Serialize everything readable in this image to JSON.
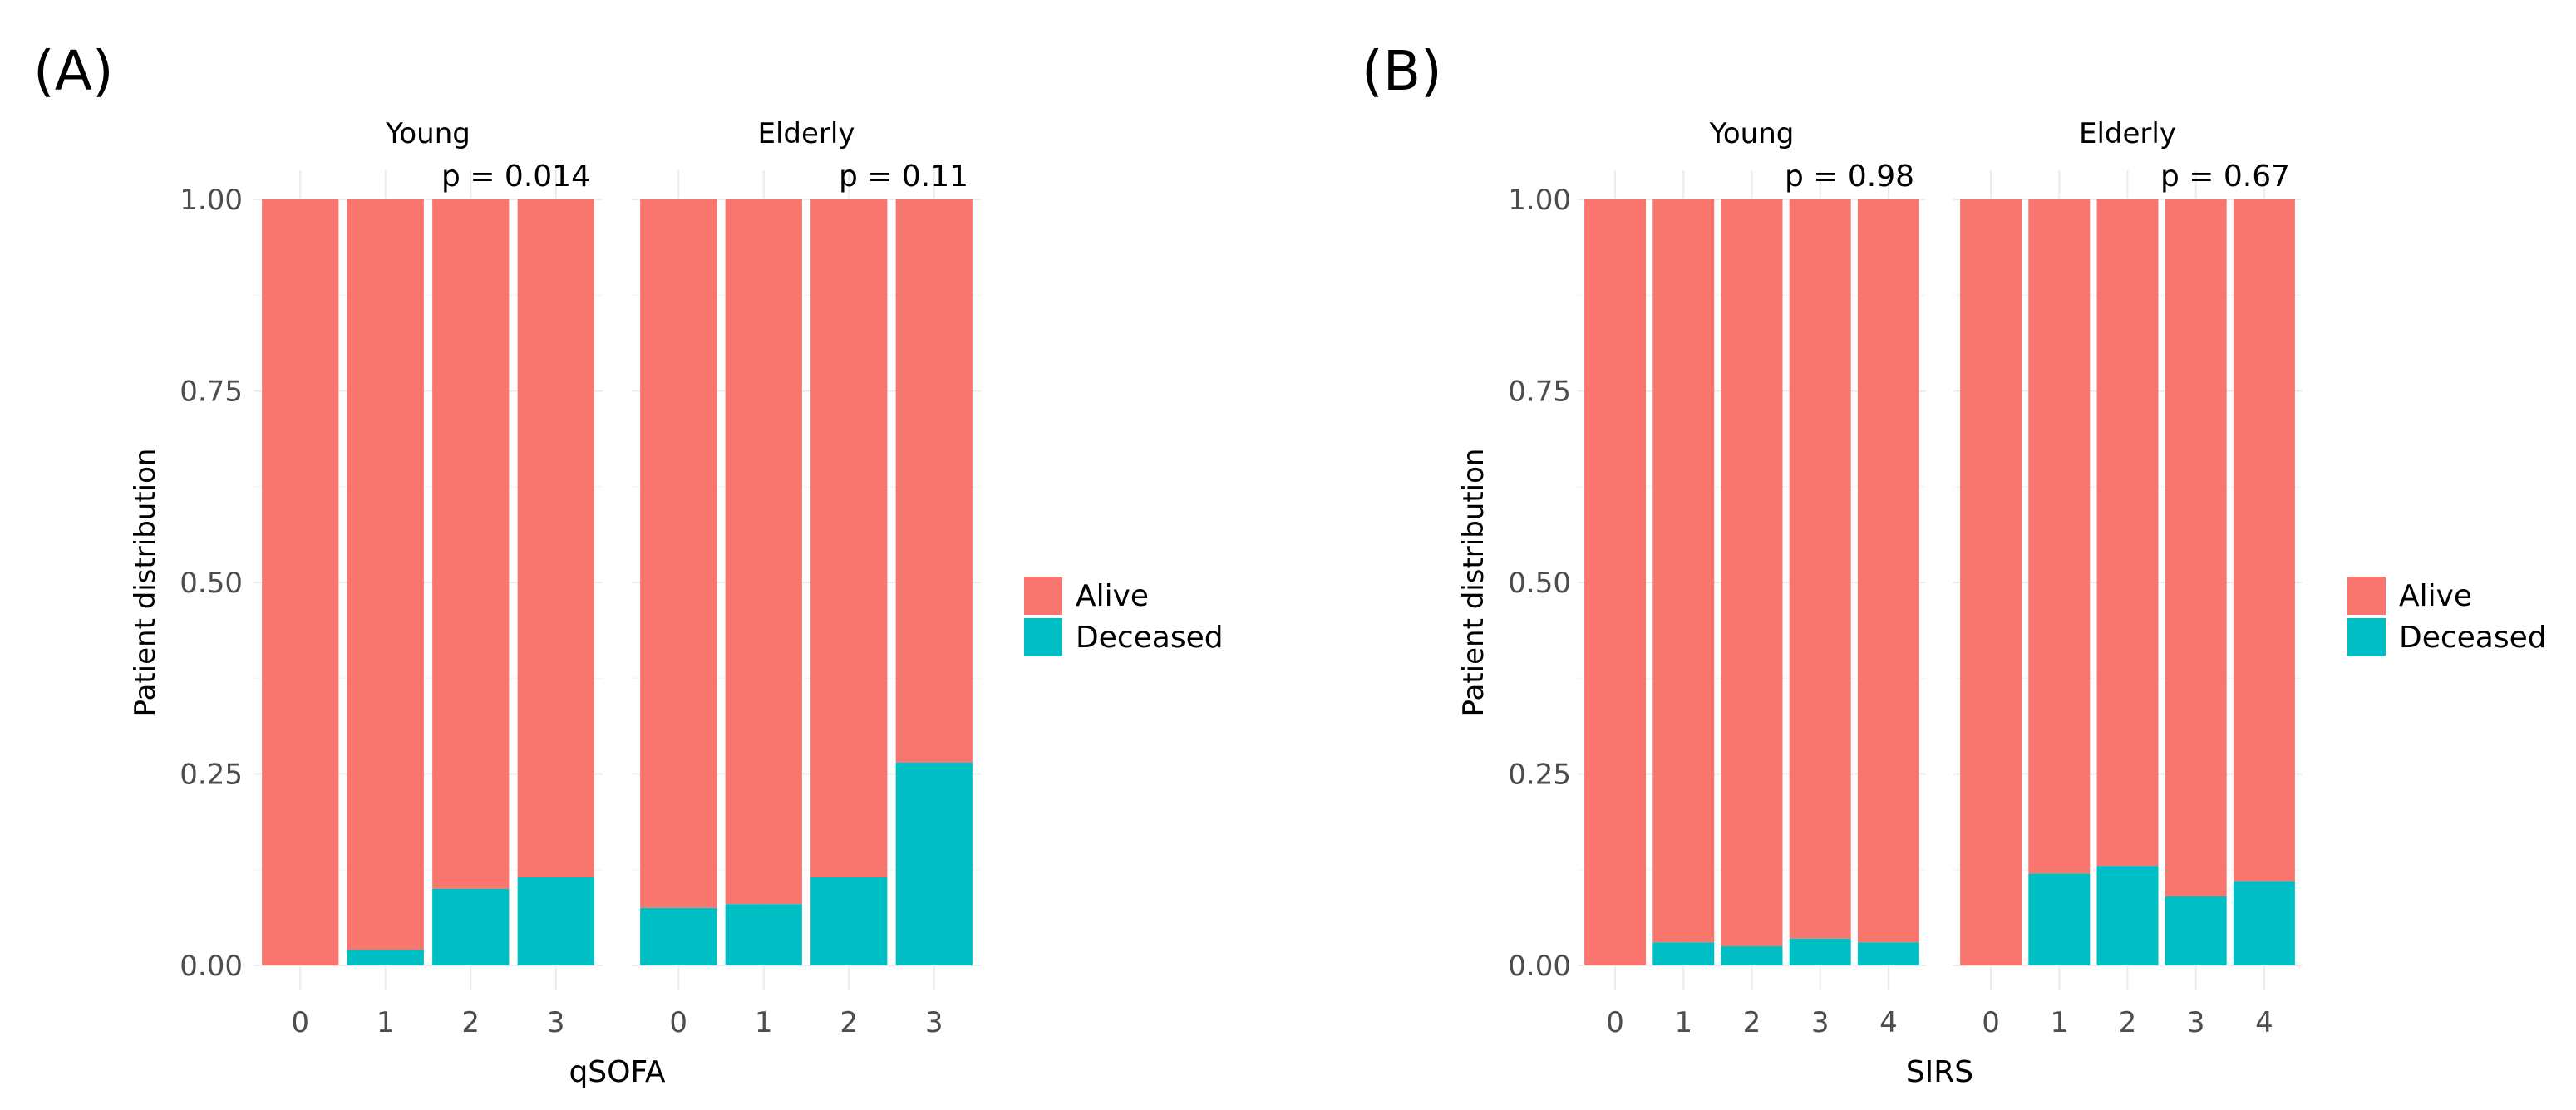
{
  "chart_data": [
    {
      "type": "bar",
      "stacked": true,
      "panel_label": "(A)",
      "xlabel": "qSOFA",
      "ylabel": "Patient distribution",
      "ylim": [
        0,
        1
      ],
      "yticks": [
        "0.00",
        "0.25",
        "0.50",
        "0.75",
        "1.00"
      ],
      "legend": {
        "placement": "right",
        "entries": [
          {
            "label": "Alive",
            "color": "#F8766D"
          },
          {
            "label": "Deceased",
            "color": "#00BFC4"
          }
        ]
      },
      "facets": [
        {
          "name": "Young",
          "p_value": "p = 0.014",
          "categories": [
            "0",
            "1",
            "2",
            "3"
          ],
          "series": [
            {
              "name": "Deceased",
              "values": [
                0.0,
                0.02,
                0.1,
                0.115
              ]
            },
            {
              "name": "Alive",
              "values": [
                1.0,
                0.98,
                0.9,
                0.885
              ]
            }
          ]
        },
        {
          "name": "Elderly",
          "p_value": "p = 0.11",
          "categories": [
            "0",
            "1",
            "2",
            "3"
          ],
          "series": [
            {
              "name": "Deceased",
              "values": [
                0.075,
                0.08,
                0.115,
                0.265
              ]
            },
            {
              "name": "Alive",
              "values": [
                0.925,
                0.92,
                0.885,
                0.735
              ]
            }
          ]
        }
      ]
    },
    {
      "type": "bar",
      "stacked": true,
      "panel_label": "(B)",
      "xlabel": "SIRS",
      "ylabel": "Patient distribution",
      "ylim": [
        0,
        1
      ],
      "yticks": [
        "0.00",
        "0.25",
        "0.50",
        "0.75",
        "1.00"
      ],
      "legend": {
        "placement": "right",
        "entries": [
          {
            "label": "Alive",
            "color": "#F8766D"
          },
          {
            "label": "Deceased",
            "color": "#00BFC4"
          }
        ]
      },
      "facets": [
        {
          "name": "Young",
          "p_value": "p = 0.98",
          "categories": [
            "0",
            "1",
            "2",
            "3",
            "4"
          ],
          "series": [
            {
              "name": "Deceased",
              "values": [
                0.0,
                0.03,
                0.025,
                0.035,
                0.03
              ]
            },
            {
              "name": "Alive",
              "values": [
                1.0,
                0.97,
                0.975,
                0.965,
                0.97
              ]
            }
          ]
        },
        {
          "name": "Elderly",
          "p_value": "p = 0.67",
          "categories": [
            "0",
            "1",
            "2",
            "3",
            "4"
          ],
          "series": [
            {
              "name": "Deceased",
              "values": [
                0.0,
                0.12,
                0.13,
                0.09,
                0.11
              ]
            },
            {
              "name": "Alive",
              "values": [
                1.0,
                0.88,
                0.87,
                0.91,
                0.89
              ]
            }
          ]
        }
      ]
    }
  ]
}
